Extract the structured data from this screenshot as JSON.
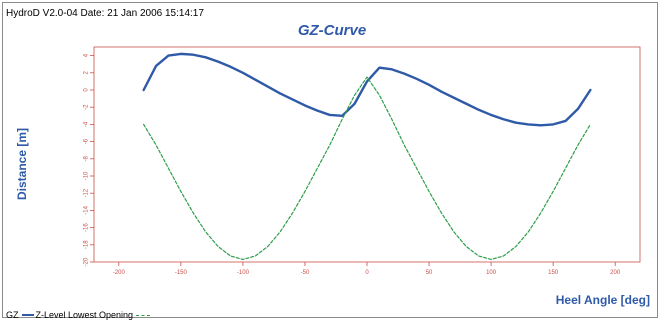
{
  "header": {
    "text": "HydroD V2.0-04 Date: 21 Jan 2006 15:14:17"
  },
  "legend": {
    "items": [
      "GZ",
      "Z-Level Lowest Opening"
    ]
  },
  "chart_data": {
    "type": "line",
    "title": "GZ-Curve",
    "xlabel": "Heel Angle [deg]",
    "ylabel": "Distance [m]",
    "xlim": [
      -220,
      220
    ],
    "ylim": [
      -20,
      5
    ],
    "xticks": [
      -200,
      -150,
      -100,
      -50,
      0,
      50,
      100,
      150,
      200
    ],
    "yticks": [
      4,
      2,
      0,
      -2,
      -4,
      -6,
      -8,
      -10,
      -12,
      -14,
      -16,
      -18,
      -20
    ],
    "grid": false,
    "legend_position": "bottom-left",
    "series": [
      {
        "name": "GZ",
        "color": "#2f5aa8",
        "style": "solid",
        "x": [
          -180,
          -170,
          -160,
          -150,
          -140,
          -130,
          -120,
          -110,
          -100,
          -90,
          -80,
          -70,
          -60,
          -50,
          -40,
          -30,
          -20,
          -10,
          0,
          10,
          20,
          30,
          40,
          50,
          60,
          70,
          80,
          90,
          100,
          110,
          120,
          130,
          140,
          150,
          160,
          170,
          180
        ],
        "values": [
          0.0,
          2.8,
          4.0,
          4.2,
          4.1,
          3.8,
          3.3,
          2.7,
          2.0,
          1.2,
          0.4,
          -0.4,
          -1.1,
          -1.8,
          -2.4,
          -2.9,
          -3.0,
          -1.6,
          1.0,
          2.6,
          2.4,
          1.9,
          1.3,
          0.6,
          -0.2,
          -0.9,
          -1.6,
          -2.3,
          -2.9,
          -3.4,
          -3.8,
          -4.0,
          -4.1,
          -4.0,
          -3.6,
          -2.2,
          0.0
        ]
      },
      {
        "name": "Z-Level Lowest Opening",
        "color": "#2e9e4a",
        "style": "dashed",
        "x": [
          -180,
          -170,
          -160,
          -150,
          -140,
          -130,
          -120,
          -110,
          -100,
          -90,
          -80,
          -70,
          -60,
          -50,
          -40,
          -30,
          -20,
          -10,
          0,
          10,
          20,
          30,
          40,
          50,
          60,
          70,
          80,
          90,
          100,
          110,
          120,
          130,
          140,
          150,
          160,
          170,
          180
        ],
        "values": [
          -4.0,
          -6.4,
          -9.1,
          -11.8,
          -14.3,
          -16.5,
          -18.2,
          -19.3,
          -19.7,
          -19.3,
          -18.2,
          -16.5,
          -14.3,
          -11.8,
          -9.1,
          -6.4,
          -3.4,
          -0.6,
          1.5,
          -0.6,
          -3.4,
          -6.4,
          -9.1,
          -11.8,
          -14.3,
          -16.5,
          -18.2,
          -19.3,
          -19.7,
          -19.3,
          -18.2,
          -16.5,
          -14.3,
          -11.8,
          -9.1,
          -6.4,
          -4.0
        ]
      }
    ]
  }
}
